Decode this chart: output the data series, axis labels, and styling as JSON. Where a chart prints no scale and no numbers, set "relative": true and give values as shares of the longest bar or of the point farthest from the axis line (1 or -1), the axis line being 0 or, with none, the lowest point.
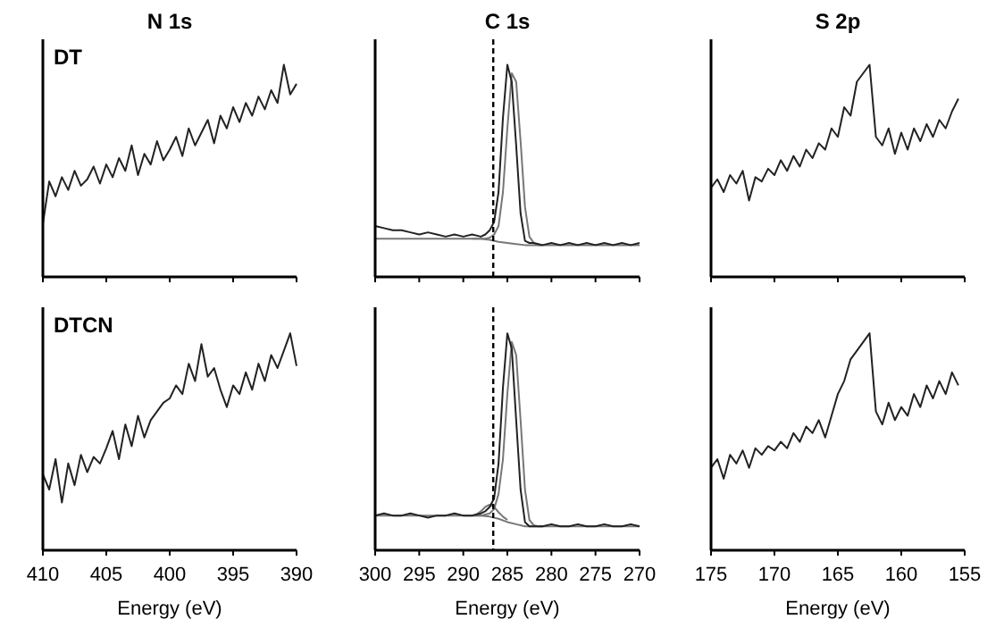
{
  "chart_data": [
    {
      "type": "line",
      "title": "N 1s",
      "annotations": [
        "DT"
      ],
      "relative": true,
      "xlim": [
        410,
        390
      ],
      "xticks": [
        410,
        405,
        400,
        395,
        390
      ],
      "tick_labels": false,
      "series": [
        {
          "color": "#222222",
          "x": [
            410,
            409.5,
            409,
            408.5,
            408,
            407.5,
            407,
            406.5,
            406,
            405.5,
            405,
            404.5,
            404,
            403.5,
            403,
            402.5,
            402,
            401.5,
            401,
            400.5,
            400,
            399.5,
            399,
            398.5,
            398,
            397.5,
            397,
            396.5,
            396,
            395.5,
            395,
            394.5,
            394,
            393.5,
            393,
            392.5,
            392,
            391.5,
            391,
            390.5,
            390
          ],
          "values": [
            0.25,
            0.45,
            0.38,
            0.47,
            0.41,
            0.5,
            0.43,
            0.46,
            0.52,
            0.44,
            0.53,
            0.47,
            0.56,
            0.5,
            0.62,
            0.48,
            0.58,
            0.53,
            0.64,
            0.55,
            0.6,
            0.66,
            0.57,
            0.7,
            0.62,
            0.68,
            0.74,
            0.63,
            0.76,
            0.7,
            0.8,
            0.73,
            0.82,
            0.76,
            0.85,
            0.79,
            0.88,
            0.82,
            1.0,
            0.86,
            0.91
          ]
        }
      ]
    },
    {
      "type": "line",
      "title": "C 1s",
      "relative": true,
      "xlim": [
        300,
        270
      ],
      "xticks": [
        300,
        295,
        290,
        285,
        280,
        275,
        270
      ],
      "tick_labels": false,
      "ref_lines": [
        {
          "axis": "x",
          "value": 286.6,
          "line_style": "dashed"
        }
      ],
      "series": [
        {
          "color": "#777777",
          "x": [
            300,
            288,
            287,
            286,
            285,
            284,
            283,
            270
          ],
          "values": [
            0.18,
            0.18,
            0.175,
            0.165,
            0.16,
            0.155,
            0.15,
            0.15
          ]
        },
        {
          "color": "#777777",
          "x": [
            289,
            288.5,
            288,
            287.5,
            287,
            286.5,
            286,
            285.5,
            285,
            284.5,
            284,
            283.5,
            283,
            282.5,
            282,
            281.5,
            281
          ],
          "values": [
            0.18,
            0.18,
            0.18,
            0.18,
            0.185,
            0.2,
            0.24,
            0.4,
            0.7,
            0.96,
            0.92,
            0.64,
            0.33,
            0.19,
            0.16,
            0.15,
            0.15
          ]
        },
        {
          "color": "#222222",
          "x": [
            300,
            299,
            298,
            297,
            296,
            295,
            294,
            293,
            292,
            291,
            290,
            289,
            288,
            287.5,
            287,
            286.5,
            286,
            285.5,
            285,
            284.5,
            284,
            283.5,
            283,
            282.5,
            282,
            281,
            280,
            279,
            278,
            277,
            276,
            275,
            274,
            273,
            272,
            271,
            270
          ],
          "values": [
            0.24,
            0.23,
            0.22,
            0.22,
            0.21,
            0.2,
            0.21,
            0.2,
            0.19,
            0.2,
            0.19,
            0.2,
            0.19,
            0.2,
            0.22,
            0.26,
            0.4,
            0.75,
            1.0,
            0.92,
            0.62,
            0.3,
            0.17,
            0.16,
            0.16,
            0.15,
            0.16,
            0.15,
            0.16,
            0.15,
            0.16,
            0.15,
            0.16,
            0.15,
            0.16,
            0.15,
            0.16
          ]
        }
      ]
    },
    {
      "type": "line",
      "title": "S 2p",
      "relative": true,
      "xlim": [
        175,
        155
      ],
      "xticks": [
        175,
        170,
        165,
        160,
        155
      ],
      "tick_labels": false,
      "series": [
        {
          "color": "#222222",
          "x": [
            175,
            174.5,
            174,
            173.5,
            173,
            172.5,
            172,
            171.5,
            171,
            170.5,
            170,
            169.5,
            169,
            168.5,
            168,
            167.5,
            167,
            166.5,
            166,
            165.5,
            165,
            164.5,
            164,
            163.5,
            163,
            162.5,
            162,
            161.5,
            161,
            160.5,
            160,
            159.5,
            159,
            158.5,
            158,
            157.5,
            157,
            156.5,
            156,
            155.5
          ],
          "values": [
            0.42,
            0.46,
            0.4,
            0.48,
            0.44,
            0.5,
            0.36,
            0.47,
            0.45,
            0.51,
            0.48,
            0.55,
            0.5,
            0.57,
            0.52,
            0.6,
            0.56,
            0.63,
            0.6,
            0.7,
            0.66,
            0.8,
            0.76,
            0.92,
            0.96,
            1.0,
            0.66,
            0.62,
            0.7,
            0.58,
            0.68,
            0.6,
            0.7,
            0.64,
            0.72,
            0.66,
            0.74,
            0.7,
            0.78,
            0.84
          ]
        }
      ]
    },
    {
      "type": "line",
      "xlabel": "Energy (eV)",
      "annotations": [
        "DTCN"
      ],
      "relative": true,
      "xlim": [
        410,
        390
      ],
      "xticks": [
        410,
        405,
        400,
        395,
        390
      ],
      "tick_labels": "x",
      "series": [
        {
          "color": "#222222",
          "x": [
            410,
            409.5,
            409,
            408.5,
            408,
            407.5,
            407,
            406.5,
            406,
            405.5,
            405,
            404.5,
            404,
            403.5,
            403,
            402.5,
            402,
            401.5,
            401,
            400.5,
            400,
            399.5,
            399,
            398.5,
            398,
            397.5,
            397,
            396.5,
            396,
            395.5,
            395,
            394.5,
            394,
            393.5,
            393,
            392.5,
            392,
            391.5,
            391,
            390.5,
            390
          ],
          "values": [
            0.35,
            0.28,
            0.42,
            0.22,
            0.4,
            0.3,
            0.44,
            0.36,
            0.43,
            0.4,
            0.47,
            0.55,
            0.42,
            0.58,
            0.48,
            0.62,
            0.52,
            0.6,
            0.64,
            0.68,
            0.7,
            0.76,
            0.72,
            0.86,
            0.78,
            0.95,
            0.8,
            0.84,
            0.74,
            0.66,
            0.76,
            0.72,
            0.82,
            0.74,
            0.86,
            0.78,
            0.9,
            0.84,
            0.92,
            1.0,
            0.85
          ]
        }
      ]
    },
    {
      "type": "line",
      "xlabel": "Energy (eV)",
      "relative": true,
      "xlim": [
        300,
        270
      ],
      "xticks": [
        300,
        295,
        290,
        285,
        280,
        275,
        270
      ],
      "tick_labels": "x",
      "ref_lines": [
        {
          "axis": "x",
          "value": 286.6,
          "line_style": "dashed"
        }
      ],
      "series": [
        {
          "color": "#777777",
          "x": [
            300,
            288,
            287,
            286,
            285,
            284,
            283,
            270
          ],
          "values": [
            0.16,
            0.16,
            0.155,
            0.145,
            0.13,
            0.12,
            0.11,
            0.11
          ]
        },
        {
          "color": "#777777",
          "x": [
            289,
            288.5,
            288,
            287.5,
            287,
            286.5,
            286,
            285.5,
            285
          ],
          "values": [
            0.16,
            0.165,
            0.18,
            0.2,
            0.21,
            0.2,
            0.175,
            0.155,
            0.14
          ]
        },
        {
          "color": "#777777",
          "x": [
            289,
            288.5,
            288,
            287.5,
            287,
            286.5,
            286,
            285.5,
            285,
            284.5,
            284,
            283.5,
            283,
            282.5,
            282,
            281.5,
            281
          ],
          "values": [
            0.16,
            0.16,
            0.16,
            0.165,
            0.17,
            0.19,
            0.26,
            0.42,
            0.72,
            0.96,
            0.9,
            0.6,
            0.28,
            0.14,
            0.115,
            0.11,
            0.11
          ]
        },
        {
          "color": "#222222",
          "x": [
            300,
            299,
            298,
            297,
            296,
            295,
            294,
            293,
            292,
            291,
            290,
            289,
            288,
            287.5,
            287,
            286.5,
            286,
            285.5,
            285,
            284.5,
            284,
            283.5,
            283,
            282.5,
            282,
            281,
            280,
            279,
            278,
            277,
            276,
            275,
            274,
            273,
            272,
            271,
            270
          ],
          "values": [
            0.16,
            0.17,
            0.16,
            0.16,
            0.17,
            0.16,
            0.15,
            0.16,
            0.16,
            0.17,
            0.16,
            0.16,
            0.17,
            0.18,
            0.2,
            0.24,
            0.4,
            0.75,
            1.0,
            0.93,
            0.6,
            0.28,
            0.13,
            0.11,
            0.11,
            0.11,
            0.12,
            0.11,
            0.11,
            0.12,
            0.11,
            0.11,
            0.12,
            0.11,
            0.11,
            0.12,
            0.11
          ]
        }
      ]
    },
    {
      "type": "line",
      "xlabel": "Energy (eV)",
      "relative": true,
      "xlim": [
        175,
        155
      ],
      "xticks": [
        175,
        170,
        165,
        160,
        155
      ],
      "tick_labels": "x",
      "series": [
        {
          "color": "#222222",
          "x": [
            175,
            174.5,
            174,
            173.5,
            173,
            172.5,
            172,
            171.5,
            171,
            170.5,
            170,
            169.5,
            169,
            168.5,
            168,
            167.5,
            167,
            166.5,
            166,
            165.5,
            165,
            164.5,
            164,
            163.5,
            163,
            162.5,
            162,
            161.5,
            161,
            160.5,
            160,
            159.5,
            159,
            158.5,
            158,
            157.5,
            157,
            156.5,
            156,
            155.5
          ],
          "values": [
            0.38,
            0.42,
            0.33,
            0.44,
            0.4,
            0.46,
            0.38,
            0.47,
            0.44,
            0.48,
            0.46,
            0.5,
            0.47,
            0.54,
            0.5,
            0.57,
            0.54,
            0.6,
            0.52,
            0.62,
            0.72,
            0.78,
            0.88,
            0.92,
            0.96,
            1.0,
            0.64,
            0.58,
            0.68,
            0.6,
            0.66,
            0.62,
            0.72,
            0.66,
            0.76,
            0.7,
            0.78,
            0.72,
            0.82,
            0.76
          ]
        }
      ]
    }
  ]
}
